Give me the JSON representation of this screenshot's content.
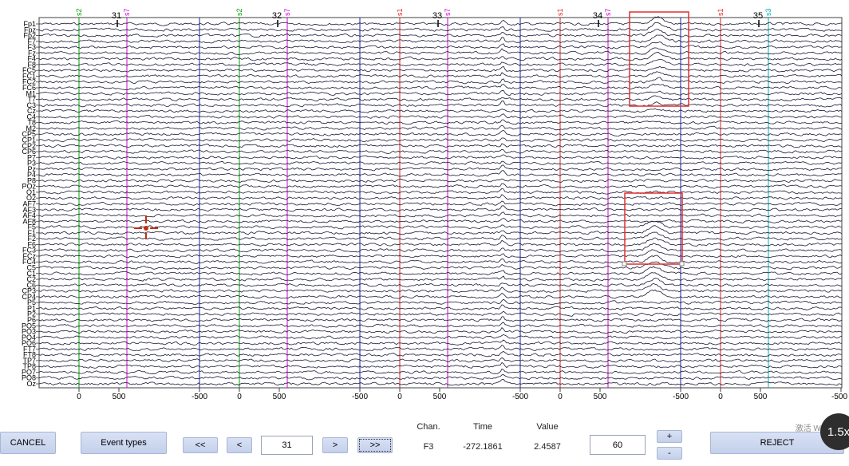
{
  "channels": [
    "Fp1",
    "Fpz",
    "Fp2",
    "F7",
    "F3",
    "Fz",
    "F4",
    "F8",
    "FC5",
    "FC1",
    "FC2",
    "FC6",
    "M1",
    "T7",
    "C3",
    "Cz",
    "C4",
    "T8",
    "M2",
    "CP5",
    "CP1",
    "CP2",
    "CP6",
    "P7",
    "P3",
    "Pz",
    "P4",
    "P8",
    "POz",
    "O1",
    "O2",
    "AF7",
    "AF3",
    "AF4",
    "AF8",
    "F5",
    "F1",
    "F2",
    "F6",
    "FC3",
    "FCz",
    "FC4",
    "C5",
    "C1",
    "C2",
    "C6",
    "CP3",
    "CP4",
    "P5",
    "P1",
    "P2",
    "P6",
    "PO5",
    "PO3",
    "PO4",
    "PO6",
    "FT7",
    "FT8",
    "TP7",
    "TP8",
    "PO7",
    "PO8",
    "Oz"
  ],
  "epochs": [
    {
      "number": "31",
      "events": [
        {
          "label": "s2",
          "color": "#00a000"
        },
        {
          "label": "s7",
          "color": "#d000d0"
        }
      ]
    },
    {
      "number": "32",
      "events": [
        {
          "label": "s2",
          "color": "#00a000"
        },
        {
          "label": "s7",
          "color": "#d000d0"
        }
      ]
    },
    {
      "number": "33",
      "events": [
        {
          "label": "s1",
          "color": "#e02020"
        },
        {
          "label": "s7",
          "color": "#d000d0"
        }
      ]
    },
    {
      "number": "34",
      "events": [
        {
          "label": "s1",
          "color": "#e02020"
        },
        {
          "label": "s7",
          "color": "#d000d0"
        }
      ]
    },
    {
      "number": "35",
      "events": [
        {
          "label": "s1",
          "color": "#e02020"
        },
        {
          "label": "s3",
          "color": "#00b0b0"
        }
      ]
    }
  ],
  "xaxis": {
    "epoch_ticks": [
      "-500",
      "0",
      "500"
    ],
    "final_tick": "-500"
  },
  "colors": {
    "trace": "#1a1a3a",
    "epoch_boundary": "#2020a0",
    "axis": "#404040",
    "selection_box": "#e03030",
    "crosshair": "#c03010",
    "button_bg": "#cdd7ef"
  },
  "controls": {
    "cancel": "CANCEL",
    "event_types": "Event types",
    "prev_fast": "<<",
    "prev": "<",
    "epoch_field": "31",
    "next": ">",
    "next_fast": ">>",
    "chan_label": "Chan.",
    "chan_value": "F3",
    "time_label": "Time",
    "time_value": "-272.1861",
    "value_label": "Value",
    "value_value": "2.4587",
    "spacing_field": "60",
    "plus": "+",
    "minus": "-",
    "reject": "REJECT"
  },
  "overlay": {
    "watermark": "激活 Windows",
    "zoom_badge": "1.5x"
  }
}
